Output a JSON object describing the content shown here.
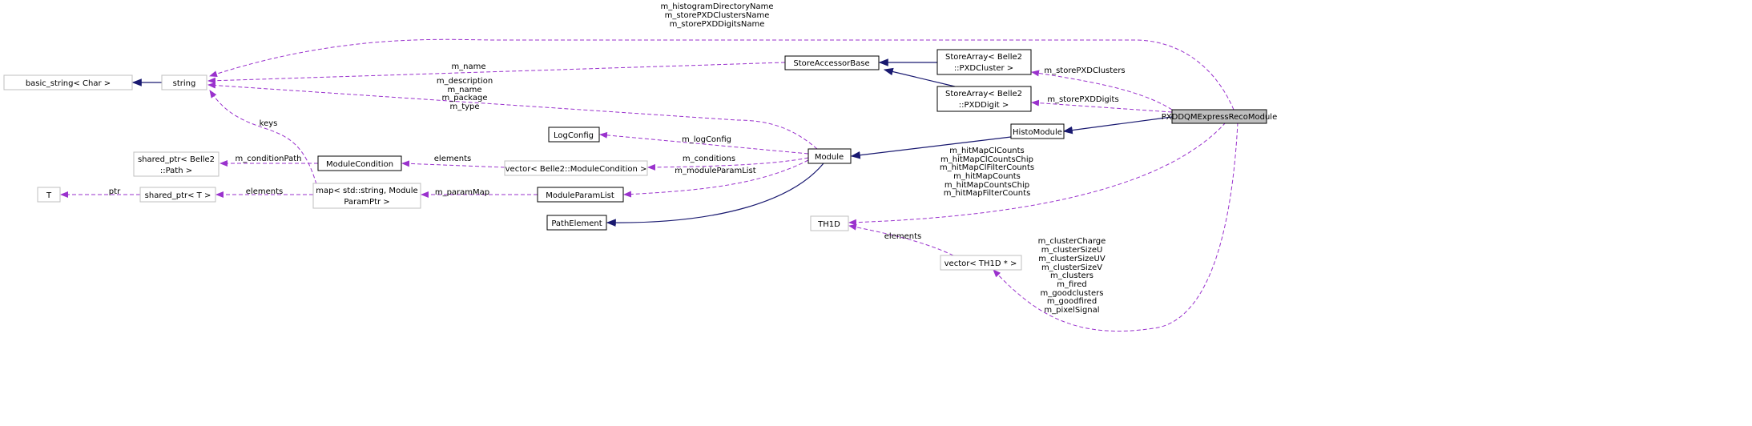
{
  "diagram": {
    "nodes": {
      "basic_string": "basic_string< Char >",
      "string": "string",
      "store_accessor_base": "StoreAccessorBase",
      "store_array_cluster": [
        "StoreArray< Belle2",
        "::PXDCluster >"
      ],
      "store_array_digit": [
        "StoreArray< Belle2",
        "::PXDDigit >"
      ],
      "main": "PXDDQMExpressRecoModule",
      "histo_module": "HistoModule",
      "module": "Module",
      "log_config": "LogConfig",
      "module_condition": "ModuleCondition",
      "vector_module_condition": "vector< Belle2::ModuleCondition >",
      "shared_ptr_path": [
        "shared_ptr< Belle2",
        "::Path >"
      ],
      "t": "T",
      "shared_ptr_t": "shared_ptr< T >",
      "map": [
        "map< std::string, Module",
        "ParamPtr >"
      ],
      "module_param_list": "ModuleParamList",
      "path_element": "PathElement",
      "th1d": "TH1D",
      "vector_th1d": "vector< TH1D * >"
    },
    "edge_labels": {
      "main_to_string": [
        "m_histogramDirectoryName",
        "m_storePXDClustersName",
        "m_storePXDDigitsName"
      ],
      "accessor_to_string": "m_name",
      "module_to_string": [
        "m_description",
        "m_name",
        "m_package",
        "m_type"
      ],
      "map_to_string": "keys",
      "condition_to_path": "m_conditionPath",
      "vector_to_condition": "elements",
      "module_to_logconfig": "m_logConfig",
      "module_to_vector": "m_conditions",
      "module_to_paramlist": "m_moduleParamList",
      "paramlist_to_map": "m_paramMap",
      "map_to_sharedptr": "elements",
      "sharedptr_to_t": "ptr",
      "main_to_clusters": "m_storePXDClusters",
      "main_to_digits": "m_storePXDDigits",
      "main_to_th1d": [
        "m_hitMapClCounts",
        "m_hitMapClCountsChip",
        "m_hitMapClFilterCounts",
        "m_hitMapCounts",
        "m_hitMapCountsChip",
        "m_hitMapFilterCounts"
      ],
      "vector_to_th1d": "elements",
      "main_to_vector_th1d": [
        "m_clusterCharge",
        "m_clusterSizeU",
        "m_clusterSizeUV",
        "m_clusterSizeV",
        "m_clusters",
        "m_fired",
        "m_goodclusters",
        "m_goodfired",
        "m_pixelSignal"
      ]
    },
    "colors": {
      "inheritance": "#191970",
      "usage": "#9a32cd",
      "main_fill": "#bfbfbf",
      "external_border": "#bfbfbf"
    }
  }
}
